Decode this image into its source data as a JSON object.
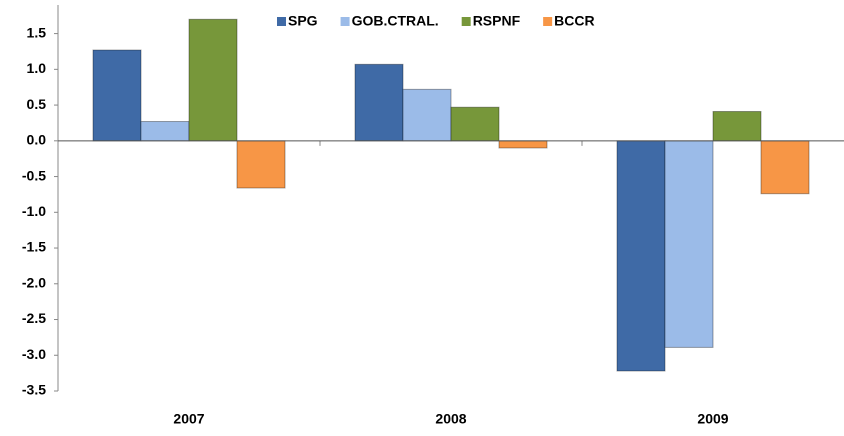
{
  "chart_data": {
    "type": "bar",
    "categories": [
      "2007",
      "2008",
      "2009"
    ],
    "series": [
      {
        "name": "SPG",
        "color": "#3f6aa6",
        "values": [
          1.27,
          1.07,
          -3.22
        ]
      },
      {
        "name": "GOB.CTRAL.",
        "color": "#9bbbe8",
        "values": [
          0.27,
          0.72,
          -2.89
        ]
      },
      {
        "name": "RSPNF",
        "color": "#77973a",
        "values": [
          1.7,
          0.47,
          0.41
        ]
      },
      {
        "name": "BCCR",
        "color": "#f79646",
        "values": [
          -0.66,
          -0.1,
          -0.74
        ]
      }
    ],
    "ylim": [
      -3.5,
      1.9
    ],
    "yticks": [
      {
        "value": -3.5,
        "label": "-3.5"
      },
      {
        "value": -3,
        "label": "-3.0"
      },
      {
        "value": -2.5,
        "label": "-2.5"
      },
      {
        "value": -2,
        "label": "-2.0"
      },
      {
        "value": -1.5,
        "label": "-1.5"
      },
      {
        "value": -1,
        "label": "-1.0"
      },
      {
        "value": -0.5,
        "label": "-0.5"
      },
      {
        "value": 0,
        "label": "0.0"
      },
      {
        "value": 0.5,
        "label": "0.5"
      },
      {
        "value": 1,
        "label": "1.0"
      },
      {
        "value": 1.5,
        "label": "1.5"
      }
    ],
    "legend": "top",
    "grid": false
  }
}
